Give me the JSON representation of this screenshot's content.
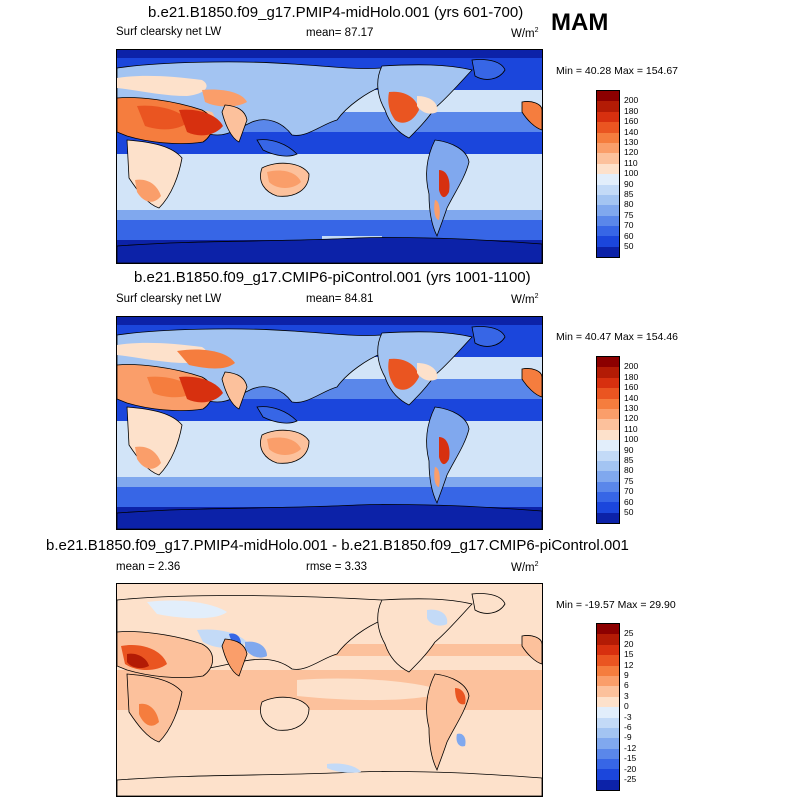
{
  "season": "MAM",
  "panels": [
    {
      "id": "test",
      "title": "b.e21.B1850.f09_g17.PMIP4-midHolo.001 (yrs 601-700)",
      "left_label": "Surf clearsky net LW",
      "center_label": "mean=  87.17",
      "units": "W/m",
      "units_exp": "2",
      "minmax": "Min =  40.28 Max = 154.67"
    },
    {
      "id": "ctrl",
      "title": "b.e21.B1850.f09_g17.CMIP6-piControl.001 (yrs 1001-1100)",
      "left_label": "Surf clearsky net LW",
      "center_label": "mean=  84.81",
      "units": "W/m",
      "units_exp": "2",
      "minmax": "Min =  40.47 Max = 154.46"
    },
    {
      "id": "diff",
      "title": "b.e21.B1850.f09_g17.PMIP4-midHolo.001 - b.e21.B1850.f09_g17.CMIP6-piControl.001",
      "left_label": "mean =   2.36",
      "center_label": "rmse =   3.33",
      "units": "W/m",
      "units_exp": "2",
      "minmax": "Min = -19.57 Max =  29.90"
    }
  ],
  "colorbars": {
    "field": {
      "labels": [
        "200",
        "180",
        "160",
        "140",
        "130",
        "120",
        "110",
        "100",
        "90",
        "85",
        "80",
        "75",
        "70",
        "60",
        "50"
      ],
      "colors": [
        "#8c0000",
        "#b31b05",
        "#d7300f",
        "#ea5521",
        "#f57d3e",
        "#fa9e6a",
        "#fcc19c",
        "#fde1cb",
        "#e2eefb",
        "#c3daf7",
        "#a3c4f2",
        "#80a8ee",
        "#5a87ea",
        "#3766e6",
        "#1b46dc",
        "#0c22a8"
      ]
    },
    "diff": {
      "labels": [
        "25",
        "20",
        "15",
        "12",
        "9",
        "6",
        "3",
        "0",
        "-3",
        "-6",
        "-9",
        "-12",
        "-15",
        "-20",
        "-25"
      ],
      "colors": [
        "#8c0000",
        "#b31b05",
        "#d7300f",
        "#ea5521",
        "#f57d3e",
        "#fa9e6a",
        "#fcc19c",
        "#fde1cb",
        "#e2eefb",
        "#c3daf7",
        "#a3c4f2",
        "#80a8ee",
        "#5a87ea",
        "#3766e6",
        "#1b46dc",
        "#0c22a8"
      ]
    }
  },
  "chart_data": [
    {
      "type": "heatmap",
      "title": "b.e21.B1850.f09_g17.PMIP4-midHolo.001 (yrs 601-700)",
      "variable": "Surf clearsky net LW",
      "units": "W/m2",
      "season": "MAM",
      "mean": 87.17,
      "min": 40.28,
      "max": 154.67,
      "contour_levels": [
        50,
        60,
        70,
        75,
        80,
        85,
        90,
        100,
        110,
        120,
        130,
        140,
        160,
        180,
        200
      ]
    },
    {
      "type": "heatmap",
      "title": "b.e21.B1850.f09_g17.CMIP6-piControl.001 (yrs 1001-1100)",
      "variable": "Surf clearsky net LW",
      "units": "W/m2",
      "season": "MAM",
      "mean": 84.81,
      "min": 40.47,
      "max": 154.46,
      "contour_levels": [
        50,
        60,
        70,
        75,
        80,
        85,
        90,
        100,
        110,
        120,
        130,
        140,
        160,
        180,
        200
      ]
    },
    {
      "type": "heatmap",
      "title": "b.e21.B1850.f09_g17.PMIP4-midHolo.001 - b.e21.B1850.f09_g17.CMIP6-piControl.001",
      "units": "W/m2",
      "season": "MAM",
      "mean": 2.36,
      "rmse": 3.33,
      "min": -19.57,
      "max": 29.9,
      "contour_levels": [
        -25,
        -20,
        -15,
        -12,
        -9,
        -6,
        -3,
        0,
        3,
        6,
        9,
        12,
        15,
        20,
        25
      ]
    }
  ]
}
